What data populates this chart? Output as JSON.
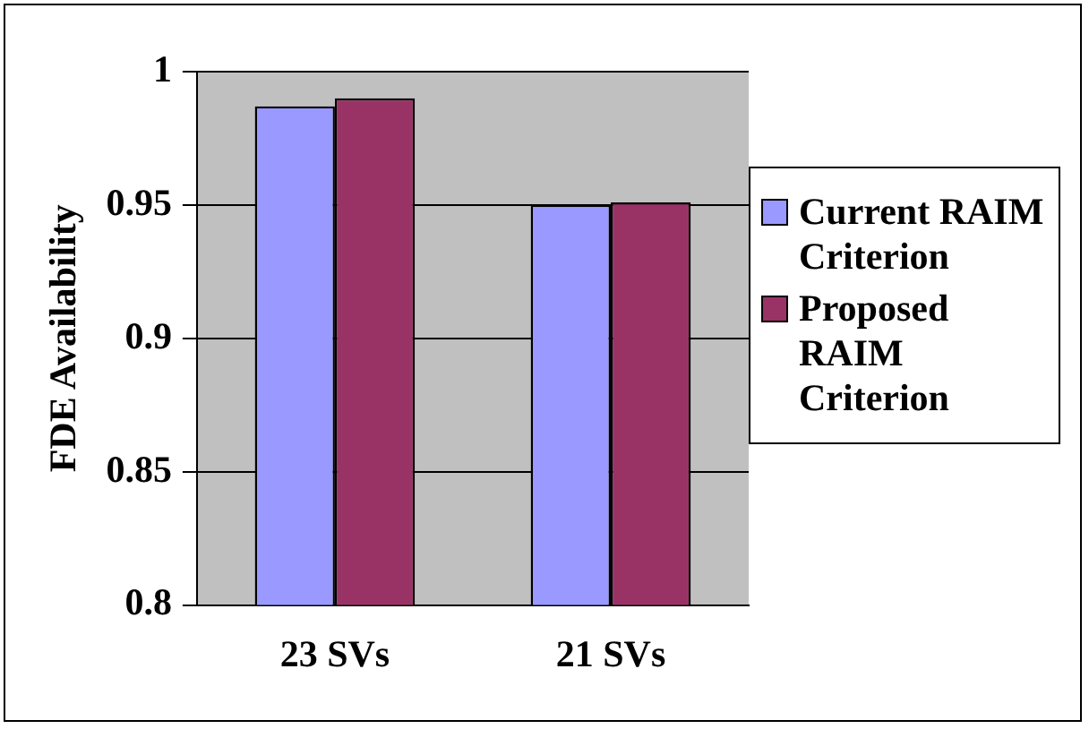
{
  "chart_data": {
    "type": "bar",
    "ylabel": "FDE Availability",
    "categories": [
      "23 SVs",
      "21 SVs"
    ],
    "series": [
      {
        "name": "Current RAIM Criterion",
        "color": "#9999ff",
        "values": [
          0.987,
          0.95
        ]
      },
      {
        "name": "Proposed RAIM Criterion",
        "color": "#993366",
        "values": [
          0.99,
          0.951
        ]
      }
    ],
    "ylim": [
      0.8,
      1
    ],
    "yticks": [
      0.8,
      0.85,
      0.9,
      0.95,
      1
    ],
    "grid": "y",
    "legend": "right"
  }
}
